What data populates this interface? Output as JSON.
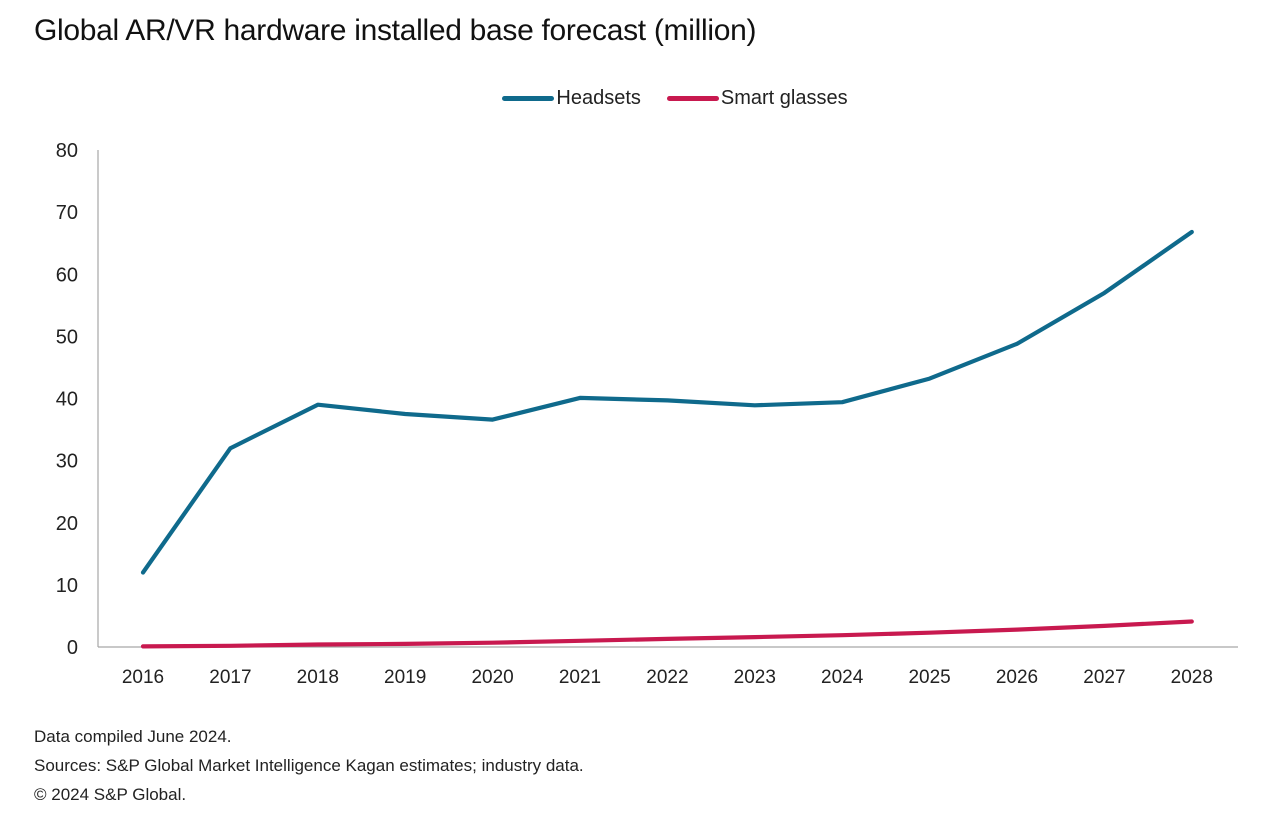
{
  "chart_data": {
    "type": "line",
    "title": "Global AR/VR hardware installed base forecast (million)",
    "xlabel": "",
    "ylabel": "",
    "x": [
      "2016",
      "2017",
      "2018",
      "2019",
      "2020",
      "2021",
      "2022",
      "2023",
      "2024",
      "2025",
      "2026",
      "2027",
      "2028"
    ],
    "ylim": [
      0,
      80
    ],
    "yticks": [
      0,
      10,
      20,
      30,
      40,
      50,
      60,
      70,
      80
    ],
    "grid": false,
    "legend_position": "top-center",
    "series": [
      {
        "name": "Headsets",
        "color": "#0f6a8c",
        "values": [
          12,
          32,
          39,
          37.5,
          36.6,
          40.1,
          39.7,
          38.9,
          39.4,
          43.2,
          48.8,
          57,
          66.8
        ]
      },
      {
        "name": "Smart glasses",
        "color": "#c8194f",
        "values": [
          0.1,
          0.2,
          0.4,
          0.5,
          0.7,
          1.0,
          1.3,
          1.6,
          1.9,
          2.3,
          2.8,
          3.4,
          4.1
        ]
      }
    ]
  },
  "footer": {
    "compiled": "Data compiled June 2024.",
    "sources": "Sources: S&P Global Market Intelligence Kagan estimates; industry data.",
    "copyright": "© 2024 S&P Global."
  }
}
